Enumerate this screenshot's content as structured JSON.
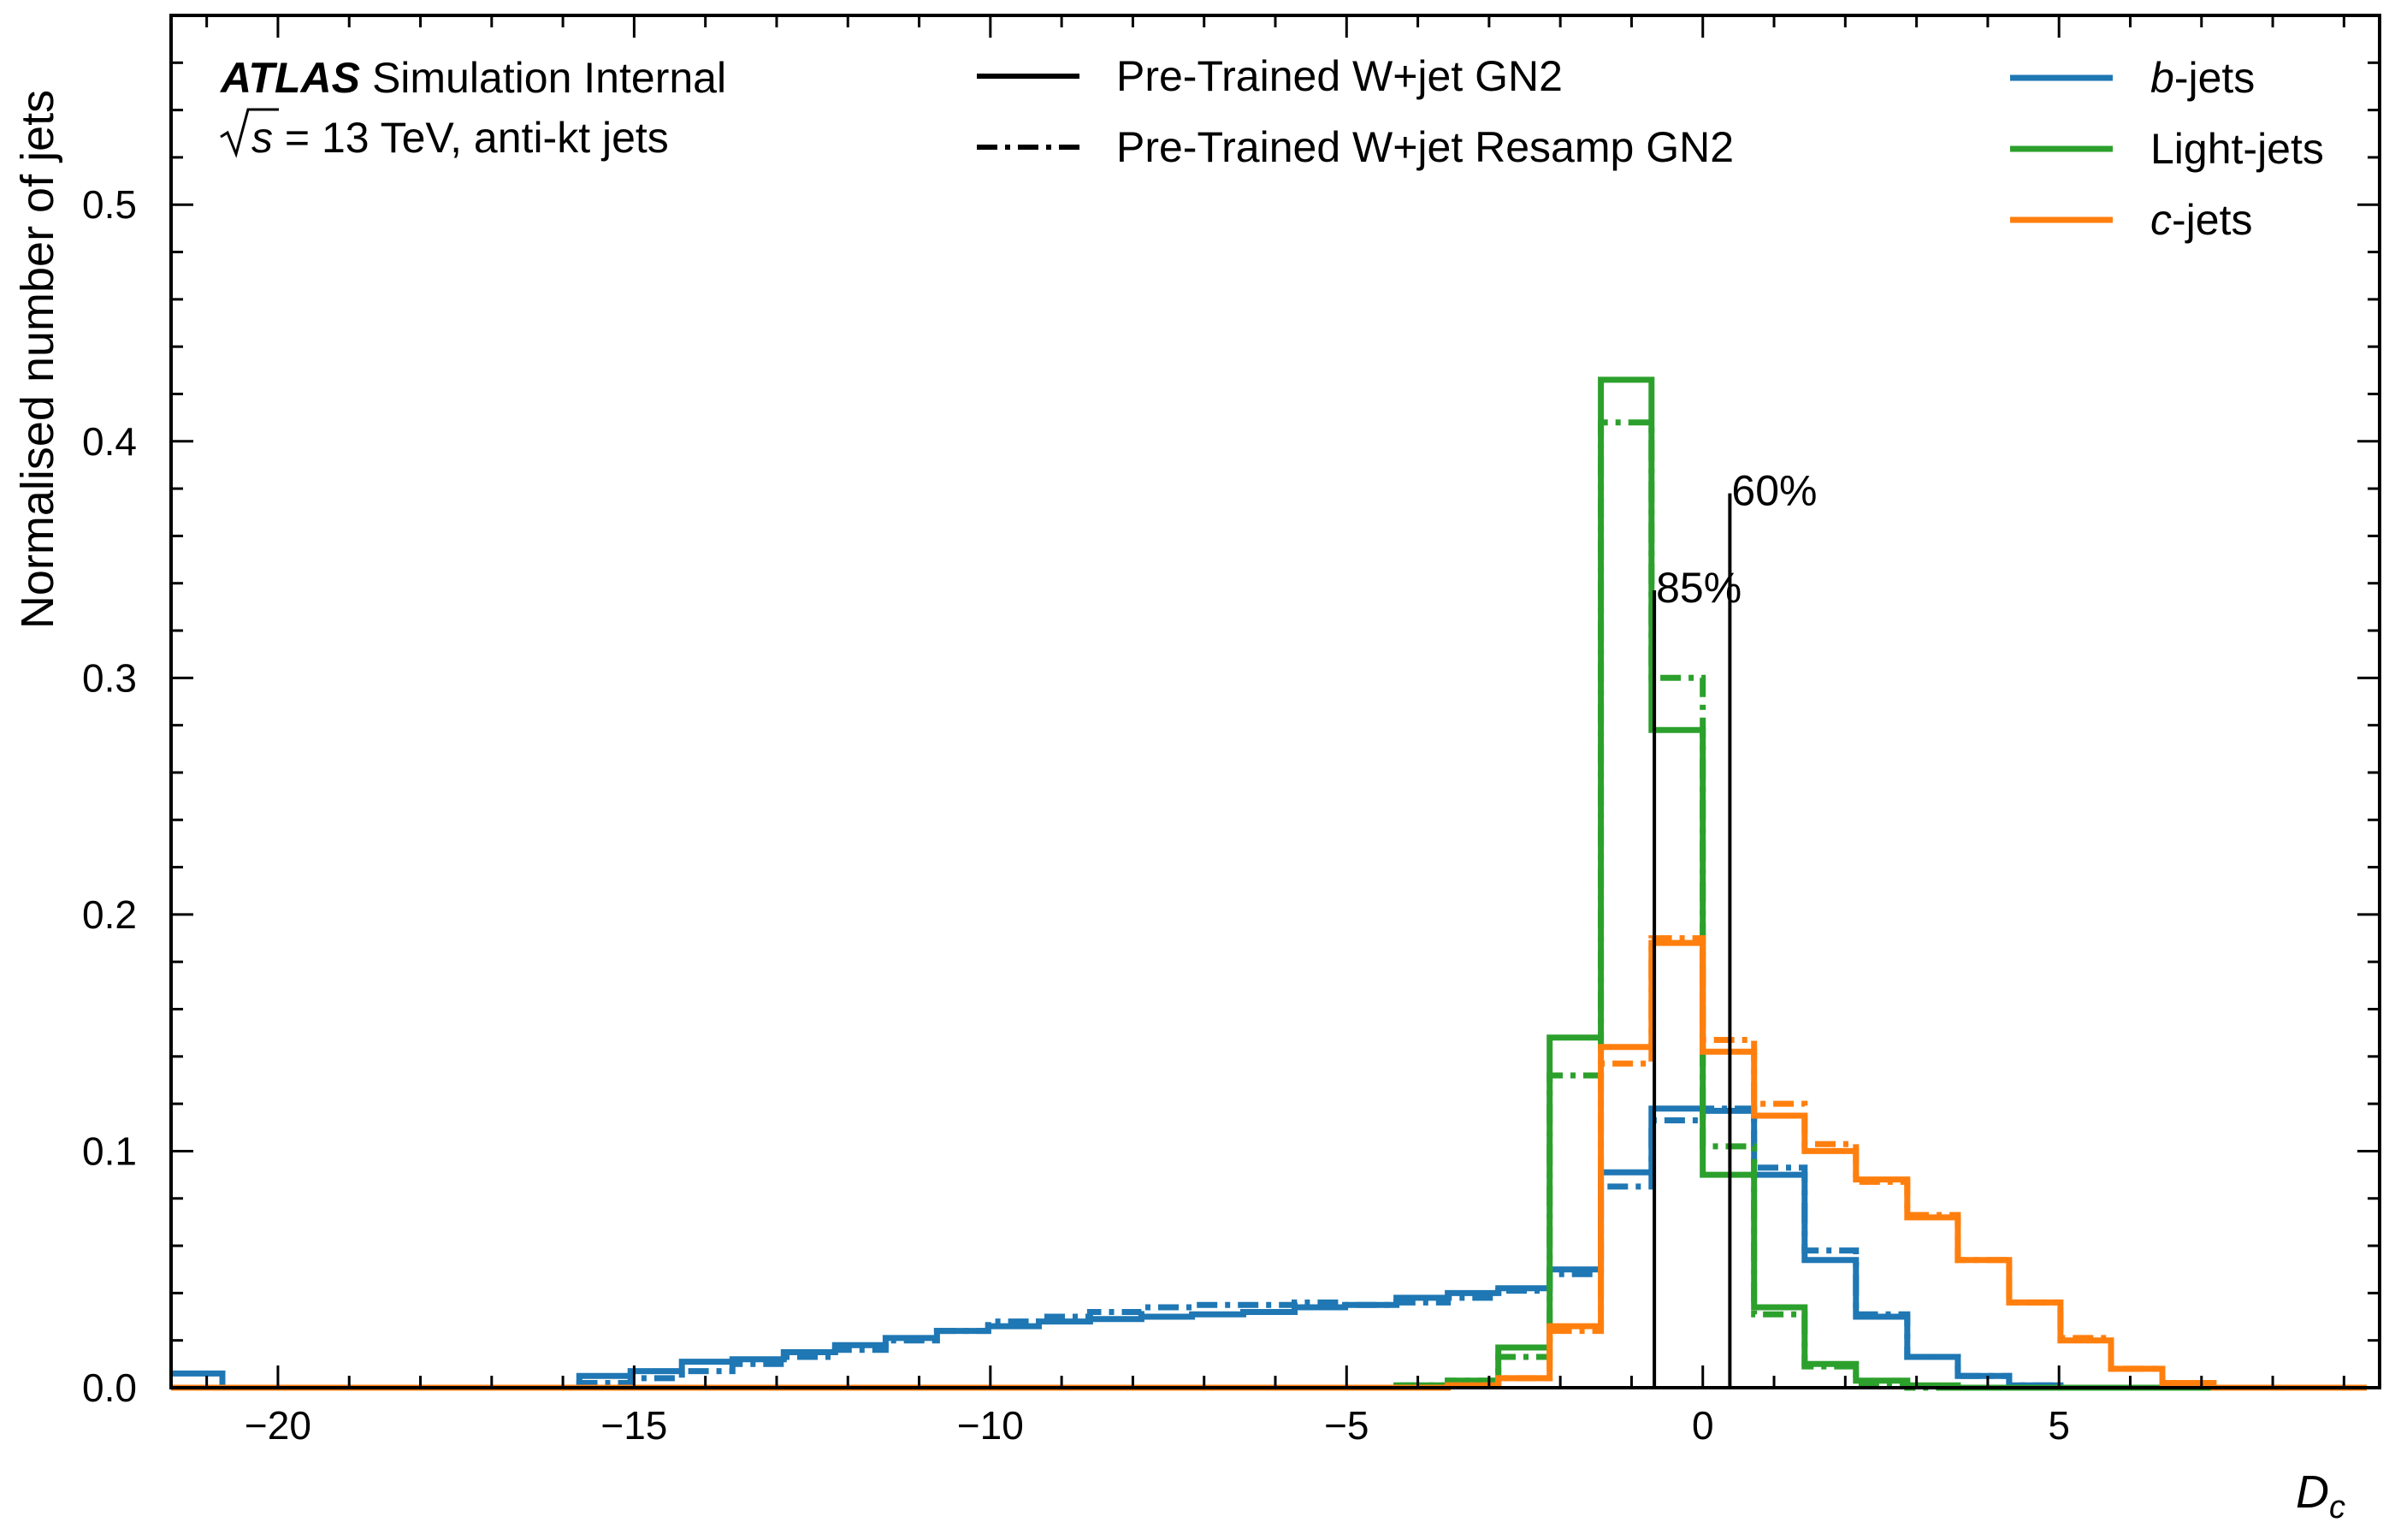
{
  "chart_data": {
    "type": "histogram-step",
    "xlabel": "D",
    "xlabel_sub": "c",
    "ylabel": "Normalised number of jets",
    "xlim": [
      -21.5,
      9.5
    ],
    "ylim": [
      0,
      0.58
    ],
    "xticks": [
      -20,
      -15,
      -10,
      -5,
      0,
      5
    ],
    "xtick_labels": [
      "−20",
      "−15",
      "−10",
      "−5",
      "0",
      "5"
    ],
    "yticks": [
      0.0,
      0.1,
      0.2,
      0.3,
      0.4,
      0.5
    ],
    "ytick_labels": [
      "0.0",
      "0.1",
      "0.2",
      "0.3",
      "0.4",
      "0.5"
    ],
    "atlas_label": {
      "atlas": "ATLAS",
      "status": "Simulation Internal",
      "energy_prefix": "s",
      "energy_rest": " = 13 TeV, anti-kt jets"
    },
    "style_legend": [
      {
        "label": "Pre-Trained W+jet GN2",
        "dash": "solid"
      },
      {
        "label": "Pre-Trained W+jet Resamp GN2",
        "dash": "dashdot"
      }
    ],
    "flavour_legend": [
      {
        "pre": "",
        "italic": "b",
        "post": "-jets",
        "color": "#1f77b4"
      },
      {
        "pre": "Light-jets",
        "italic": "",
        "post": "",
        "color": "#2ca02c"
      },
      {
        "pre": "",
        "italic": "c",
        "post": "-jets",
        "color": "#ff7f0e"
      }
    ],
    "working_points": [
      {
        "label": "85%",
        "x": -0.68,
        "ytop": 0.337
      },
      {
        "label": "60%",
        "x": 0.38,
        "ytop": 0.378
      }
    ],
    "bin_edges": [
      -21.5,
      -20.78,
      -20.07,
      -19.35,
      -18.63,
      -17.92,
      -17.2,
      -16.48,
      -15.77,
      -15.05,
      -14.33,
      -13.62,
      -12.9,
      -12.18,
      -11.47,
      -10.75,
      -10.03,
      -9.32,
      -8.6,
      -7.88,
      -7.17,
      -6.45,
      -5.73,
      -5.02,
      -4.3,
      -3.58,
      -2.87,
      -2.15,
      -1.43,
      -0.72,
      0.0,
      0.72,
      1.43,
      2.15,
      2.87,
      3.58,
      4.3,
      5.02,
      5.73,
      6.45,
      7.17,
      7.88,
      8.6,
      9.32
    ],
    "series": [
      {
        "flavour": "b-jets",
        "style": "solid",
        "color": "#1f77b4",
        "values": [
          0.006,
          0.0,
          0.0,
          0.0,
          0.0,
          0.0,
          0.0,
          0.0,
          0.005,
          0.007,
          0.011,
          0.012,
          0.015,
          0.018,
          0.021,
          0.024,
          0.026,
          0.028,
          0.029,
          0.03,
          0.031,
          0.032,
          0.034,
          0.035,
          0.038,
          0.04,
          0.042,
          0.05,
          0.091,
          0.118,
          0.117,
          0.09,
          0.054,
          0.03,
          0.013,
          0.005,
          0.001,
          0.0,
          0.0,
          0.0,
          0.0,
          0.0,
          0.0
        ]
      },
      {
        "flavour": "b-jets",
        "style": "dashdot",
        "color": "#1f77b4",
        "values": [
          0.0,
          0.0,
          0.0,
          0.0,
          0.0,
          0.0,
          0.0,
          0.0,
          0.002,
          0.004,
          0.007,
          0.01,
          0.013,
          0.016,
          0.02,
          0.024,
          0.028,
          0.03,
          0.032,
          0.034,
          0.035,
          0.035,
          0.036,
          0.035,
          0.036,
          0.038,
          0.041,
          0.048,
          0.085,
          0.113,
          0.118,
          0.093,
          0.058,
          0.031,
          0.013,
          0.005,
          0.001,
          0.0,
          0.0,
          0.0,
          0.0,
          0.0,
          0.0
        ]
      },
      {
        "flavour": "Light-jets",
        "style": "solid",
        "color": "#2ca02c",
        "values": [
          0.0,
          0.0,
          0.0,
          0.0,
          0.0,
          0.0,
          0.0,
          0.0,
          0.0,
          0.0,
          0.0,
          0.0,
          0.0,
          0.0,
          0.0,
          0.0,
          0.0,
          0.0,
          0.0,
          0.0,
          0.0,
          0.0,
          0.0,
          0.0,
          0.001,
          0.003,
          0.017,
          0.148,
          0.426,
          0.278,
          0.09,
          0.034,
          0.01,
          0.003,
          0.001,
          0.0,
          0.0,
          0.0,
          0.0,
          0.0,
          0.0,
          0.0,
          0.0
        ]
      },
      {
        "flavour": "Light-jets",
        "style": "dashdot",
        "color": "#2ca02c",
        "values": [
          0.0,
          0.0,
          0.0,
          0.0,
          0.0,
          0.0,
          0.0,
          0.0,
          0.0,
          0.0,
          0.0,
          0.0,
          0.0,
          0.0,
          0.0,
          0.0,
          0.0,
          0.0,
          0.0,
          0.0,
          0.0,
          0.0,
          0.0,
          0.0,
          0.001,
          0.003,
          0.013,
          0.132,
          0.408,
          0.3,
          0.102,
          0.031,
          0.009,
          0.002,
          0.0,
          0.0,
          0.0,
          0.0,
          0.0,
          0.0,
          0.0,
          0.0,
          0.0
        ]
      },
      {
        "flavour": "c-jets",
        "style": "solid",
        "color": "#ff7f0e",
        "values": [
          0.0,
          0.0,
          0.0,
          0.0,
          0.0,
          0.0,
          0.0,
          0.0,
          0.0,
          0.0,
          0.0,
          0.0,
          0.0,
          0.0,
          0.0,
          0.0,
          0.0,
          0.0,
          0.0,
          0.0,
          0.0,
          0.0,
          0.0,
          0.0,
          0.0,
          0.001,
          0.004,
          0.026,
          0.144,
          0.188,
          0.142,
          0.115,
          0.1,
          0.088,
          0.072,
          0.054,
          0.036,
          0.02,
          0.008,
          0.002,
          0.0,
          0.0,
          0.0
        ]
      },
      {
        "flavour": "c-jets",
        "style": "dashdot",
        "color": "#ff7f0e",
        "values": [
          0.0,
          0.0,
          0.0,
          0.0,
          0.0,
          0.0,
          0.0,
          0.0,
          0.0,
          0.0,
          0.0,
          0.0,
          0.0,
          0.0,
          0.0,
          0.0,
          0.0,
          0.0,
          0.0,
          0.0,
          0.0,
          0.0,
          0.0,
          0.0,
          0.0,
          0.001,
          0.004,
          0.024,
          0.137,
          0.19,
          0.147,
          0.12,
          0.103,
          0.087,
          0.073,
          0.054,
          0.036,
          0.021,
          0.008,
          0.002,
          0.0,
          0.0,
          0.0
        ]
      }
    ]
  }
}
